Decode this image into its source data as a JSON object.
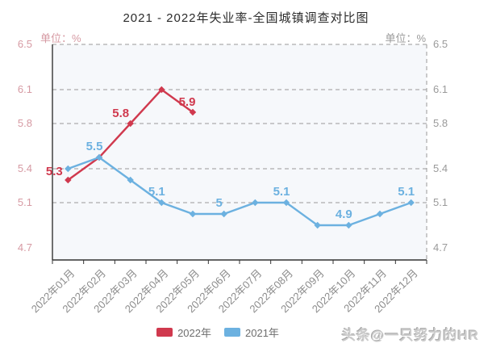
{
  "page": {
    "title": "2021 - 2022年失业率-全国城镇调查对比图",
    "watermark": "头条@一只努力的HR"
  },
  "chart_data": {
    "type": "line",
    "title": "2021 - 2022年失业率-全国城镇调查对比图",
    "unit_left": "单位：%",
    "unit_right": "单位：%",
    "xlabel": "",
    "ylabel": "单位：%",
    "ylim": [
      4.7,
      6.5
    ],
    "y_ticks": [
      6.5,
      6.1,
      5.8,
      5.4,
      5.1,
      4.7
    ],
    "grid": true,
    "legend_position": "bottom",
    "categories": [
      "2022年01月",
      "2022年02月",
      "2022年03月",
      "2022年04月",
      "2022年05月",
      "2022年06月",
      "2022年07月",
      "2022年08月",
      "2022年09月",
      "2022年10月",
      "2022年11月",
      "2022年12月"
    ],
    "series": [
      {
        "name": "2022年",
        "color": "#d0394e",
        "values": [
          5.3,
          5.5,
          5.8,
          6.1,
          5.9
        ],
        "point_labels": [
          "5.3",
          "",
          "5.8",
          "",
          "5.9"
        ]
      },
      {
        "name": "2021年",
        "color": "#6cb1e0",
        "values": [
          5.4,
          5.5,
          5.3,
          5.1,
          5.0,
          5.0,
          5.1,
          5.1,
          4.9,
          4.9,
          5.0,
          5.1
        ],
        "point_labels": [
          "",
          "5.5",
          "",
          "5.1",
          "",
          "5",
          "",
          "5.1",
          "",
          "4.9",
          "",
          "5.1"
        ]
      }
    ],
    "style": {
      "plot_bg": "#f6f8fb",
      "grid_color": "#999999",
      "axis_color": "#333333",
      "left_axis_label_color": "#d69aa3",
      "right_axis_label_color": "#9a9a9a",
      "x_axis_label_color": "#8c8c8c",
      "title_color": "#2b2b2b",
      "legend_text_color": "#6e6e6e",
      "watermark_color": "#cbcbcb"
    }
  }
}
